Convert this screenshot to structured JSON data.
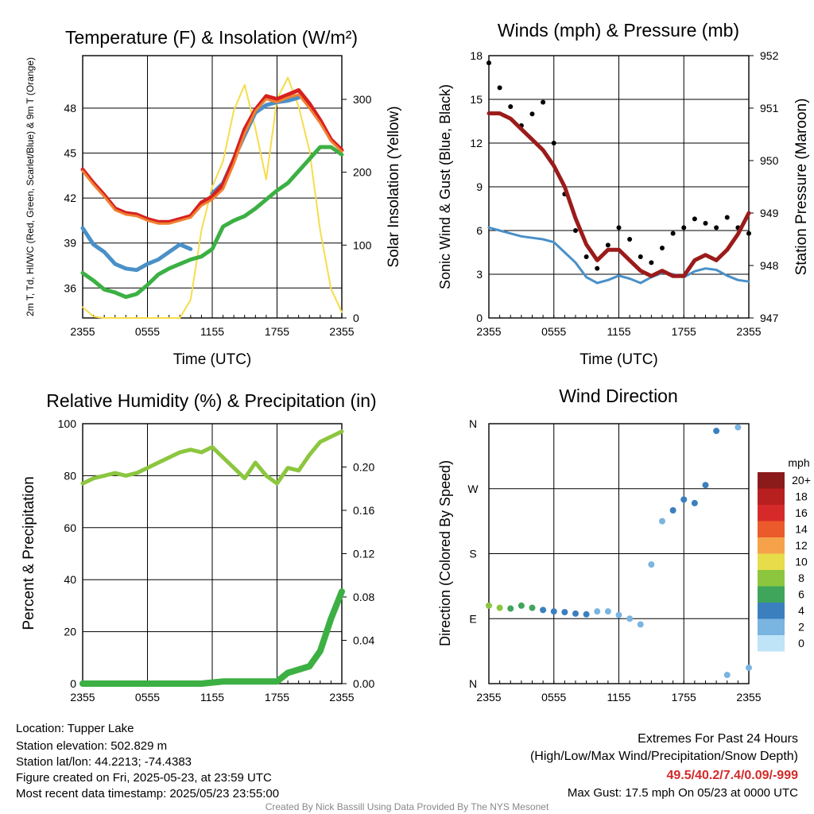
{
  "footer": {
    "location": "Location: Tupper Lake",
    "elevation": "Station elevation: 502.829 m",
    "latlon": "Station lat/lon: 44.2213; -74.4383",
    "created": "Figure created on Fri, 2025-05-23, at 23:59 UTC",
    "recent": "Most recent data timestamp: 2025/05/23 23:55:00",
    "extremes_title": "Extremes For Past 24 Hours",
    "extremes_legend": "(High/Low/Max Wind/Precipitation/Snow Depth)",
    "extremes_values": "49.5/40.2/7.4/0.09/-999",
    "max_gust": "Max Gust: 17.5 mph On 05/23 at 0000 UTC",
    "credit": "Created By Nick Bassill Using Data Provided By The NYS Mesonet"
  },
  "colors": {
    "temperature": "#d62020",
    "dewpoint": "#3cb043",
    "wind_chill": "#4a90c8",
    "temp_9m": "#f08030",
    "insolation": "#f7dc4a",
    "wind": "#4a90c8",
    "gust": "#000000",
    "pressure": "#9b1b1b",
    "rh": "#8cc63f",
    "precip": "#3cb043",
    "extremes": "#d22a2a"
  },
  "chart_data": [
    {
      "type": "line",
      "title": "Temperature (F) & Insolation (W/m²)",
      "xlabel": "Time (UTC)",
      "ylabel": "2m T, Td, HI/WC (Red, Green, Scarlet/Blue) & 9m T (Orange)",
      "ylabel_right": "Solar Insolation (Yellow)",
      "x_ticks": [
        "2355",
        "0555",
        "1155",
        "1755",
        "2355"
      ],
      "ylim": [
        34,
        51.5
      ],
      "y_ticks": [
        36,
        39,
        42,
        45,
        48
      ],
      "ylim_right": [
        0,
        360
      ],
      "y_ticks_right": [
        0,
        100,
        200,
        300
      ],
      "hours": [
        0,
        1,
        2,
        3,
        4,
        5,
        6,
        7,
        8,
        9,
        10,
        11,
        12,
        13,
        14,
        15,
        16,
        17,
        18,
        19,
        20,
        21,
        22,
        23,
        24
      ],
      "series": [
        {
          "key": "temperature",
          "axis": "left",
          "values": [
            43.9,
            43.0,
            42.2,
            41.3,
            41.0,
            40.9,
            40.6,
            40.4,
            40.4,
            40.6,
            40.8,
            41.7,
            42.1,
            42.9,
            44.6,
            46.6,
            47.9,
            48.8,
            48.6,
            48.9,
            49.2,
            48.3,
            47.2,
            45.9,
            45.2
          ]
        },
        {
          "key": "temp_9m",
          "axis": "left",
          "values": [
            43.8,
            42.9,
            42.1,
            41.2,
            40.9,
            40.8,
            40.5,
            40.3,
            40.3,
            40.5,
            40.7,
            41.5,
            41.9,
            42.6,
            44.3,
            46.3,
            47.8,
            48.6,
            48.4,
            48.7,
            48.9,
            48.0,
            47.0,
            45.8,
            45.1
          ]
        },
        {
          "key": "wind_chill",
          "axis": "left",
          "values": [
            40.0,
            38.9,
            38.4,
            37.6,
            37.3,
            37.2,
            37.6,
            37.9,
            38.4,
            38.9,
            38.6,
            null,
            42.3,
            43.0,
            44.6,
            46.2,
            47.7,
            48.2,
            48.4,
            48.5,
            48.7,
            null,
            null,
            null,
            null
          ]
        },
        {
          "key": "dewpoint",
          "axis": "left",
          "values": [
            37.0,
            36.5,
            35.9,
            35.7,
            35.4,
            35.6,
            36.2,
            36.9,
            37.3,
            37.6,
            37.9,
            38.1,
            38.6,
            40.1,
            40.5,
            40.8,
            41.3,
            41.9,
            42.5,
            43.0,
            43.8,
            44.6,
            45.4,
            45.4,
            44.9
          ]
        },
        {
          "key": "insolation",
          "axis": "right",
          "values": [
            15,
            2,
            0,
            0,
            0,
            0,
            0,
            0,
            0,
            0,
            25,
            120,
            180,
            215,
            285,
            320,
            260,
            190,
            300,
            330,
            290,
            230,
            120,
            40,
            8
          ]
        }
      ]
    },
    {
      "type": "line",
      "title": "Winds (mph) & Pressure (mb)",
      "xlabel": "Time (UTC)",
      "ylabel": "Sonic Wind & Gust (Blue, Black)",
      "ylabel_right": "Station Pressure (Maroon)",
      "x_ticks": [
        "2355",
        "0555",
        "1155",
        "1755",
        "2355"
      ],
      "ylim": [
        0,
        18
      ],
      "y_ticks": [
        0,
        3,
        6,
        9,
        12,
        15,
        18
      ],
      "ylim_right": [
        947,
        952
      ],
      "y_ticks_right": [
        947,
        948,
        949,
        950,
        951,
        952
      ],
      "hours": [
        0,
        1,
        2,
        3,
        4,
        5,
        6,
        7,
        8,
        9,
        10,
        11,
        12,
        13,
        14,
        15,
        16,
        17,
        18,
        19,
        20,
        21,
        22,
        23,
        24
      ],
      "series": [
        {
          "key": "wind",
          "axis": "left",
          "values": [
            6.2,
            6.0,
            5.8,
            5.6,
            5.5,
            5.4,
            5.2,
            4.5,
            3.8,
            2.8,
            2.4,
            2.6,
            2.9,
            2.7,
            2.4,
            2.8,
            3.1,
            3.0,
            2.8,
            3.2,
            3.4,
            3.3,
            2.9,
            2.6,
            2.5
          ]
        },
        {
          "key": "gust",
          "axis": "left",
          "mode": "points",
          "values": [
            17.5,
            15.8,
            14.5,
            13.2,
            14.0,
            14.8,
            12.0,
            8.5,
            6.0,
            4.2,
            3.4,
            5.0,
            6.2,
            5.4,
            4.2,
            3.8,
            4.8,
            5.8,
            6.2,
            6.8,
            6.5,
            6.2,
            6.9,
            6.2,
            5.8
          ]
        },
        {
          "key": "pressure",
          "axis": "right",
          "values": [
            950.9,
            950.9,
            950.8,
            950.6,
            950.4,
            950.2,
            949.9,
            949.5,
            948.9,
            948.4,
            948.1,
            948.3,
            948.3,
            948.1,
            947.9,
            947.8,
            947.9,
            947.8,
            947.8,
            948.1,
            948.2,
            948.1,
            948.3,
            948.6,
            949.0
          ]
        }
      ]
    },
    {
      "type": "line",
      "title": "Relative Humidity (%) & Precipitation (in)",
      "xlabel": "",
      "ylabel": "Percent & Precipitation",
      "x_ticks": [
        "2355",
        "0555",
        "1155",
        "1755",
        "2355"
      ],
      "ylim": [
        0,
        100
      ],
      "y_ticks": [
        0,
        20,
        40,
        60,
        80,
        100
      ],
      "ylim_right": [
        0,
        0.24
      ],
      "y_ticks_right": [
        0.0,
        0.04,
        0.08,
        0.12,
        0.16,
        0.2
      ],
      "y_tick_labels_right": [
        "0.00",
        "0.04",
        "0.08",
        "0.12",
        "0.16",
        "0.20"
      ],
      "hours": [
        0,
        1,
        2,
        3,
        4,
        5,
        6,
        7,
        8,
        9,
        10,
        11,
        12,
        13,
        14,
        15,
        16,
        17,
        18,
        19,
        20,
        21,
        22,
        23,
        24
      ],
      "series": [
        {
          "key": "rh",
          "axis": "left",
          "values": [
            77,
            79,
            80,
            81,
            80,
            81,
            83,
            85,
            87,
            89,
            90,
            89,
            91,
            87,
            83,
            79,
            85,
            80,
            77,
            83,
            82,
            88,
            93,
            95,
            97
          ]
        },
        {
          "key": "precip",
          "axis": "right",
          "values": [
            0.0,
            0.0,
            0.0,
            0.0,
            0.0,
            0.0,
            0.0,
            0.0,
            0.0,
            0.0,
            0.0,
            0.0,
            0.001,
            0.002,
            0.002,
            0.002,
            0.002,
            0.002,
            0.002,
            0.01,
            0.013,
            0.016,
            0.03,
            0.06,
            0.085
          ]
        }
      ]
    },
    {
      "type": "scatter",
      "title": "Wind Direction",
      "xlabel": "",
      "ylabel": "Direction (Colored By Speed)",
      "x_ticks": [
        "2355",
        "0555",
        "1155",
        "1755",
        "2355"
      ],
      "y_ticks": [
        "N",
        "E",
        "S",
        "W",
        "N"
      ],
      "ylim": [
        0,
        360
      ],
      "colorbar_title": "mph",
      "colorbar_labels": [
        "20+",
        "18",
        "16",
        "14",
        "12",
        "10",
        "8",
        "6",
        "4",
        "2",
        "0"
      ],
      "colorbar_colors": [
        "#8b1a1a",
        "#b81f1f",
        "#d62a2a",
        "#ea5a2a",
        "#f5a24a",
        "#e7dc4a",
        "#8cc63f",
        "#3fa55a",
        "#3b7fbf",
        "#7ab4e0",
        "#bfe3f7"
      ],
      "hours": [
        0,
        1,
        2,
        3,
        4,
        5,
        6,
        7,
        8,
        9,
        10,
        11,
        12,
        13,
        14,
        15,
        16,
        17,
        18,
        19,
        20,
        21,
        22,
        23,
        24
      ],
      "direction": [
        108,
        105,
        104,
        108,
        105,
        102,
        100,
        99,
        97,
        96,
        100,
        100,
        95,
        90,
        82,
        165,
        225,
        240,
        255,
        250,
        275,
        350,
        12,
        355,
        22
      ],
      "speed": [
        7,
        7,
        6,
        6,
        5,
        4,
        4,
        4,
        3,
        3,
        2,
        2,
        2,
        2,
        2,
        2,
        2,
        3,
        3,
        3,
        3,
        3,
        2,
        2,
        2
      ]
    }
  ]
}
